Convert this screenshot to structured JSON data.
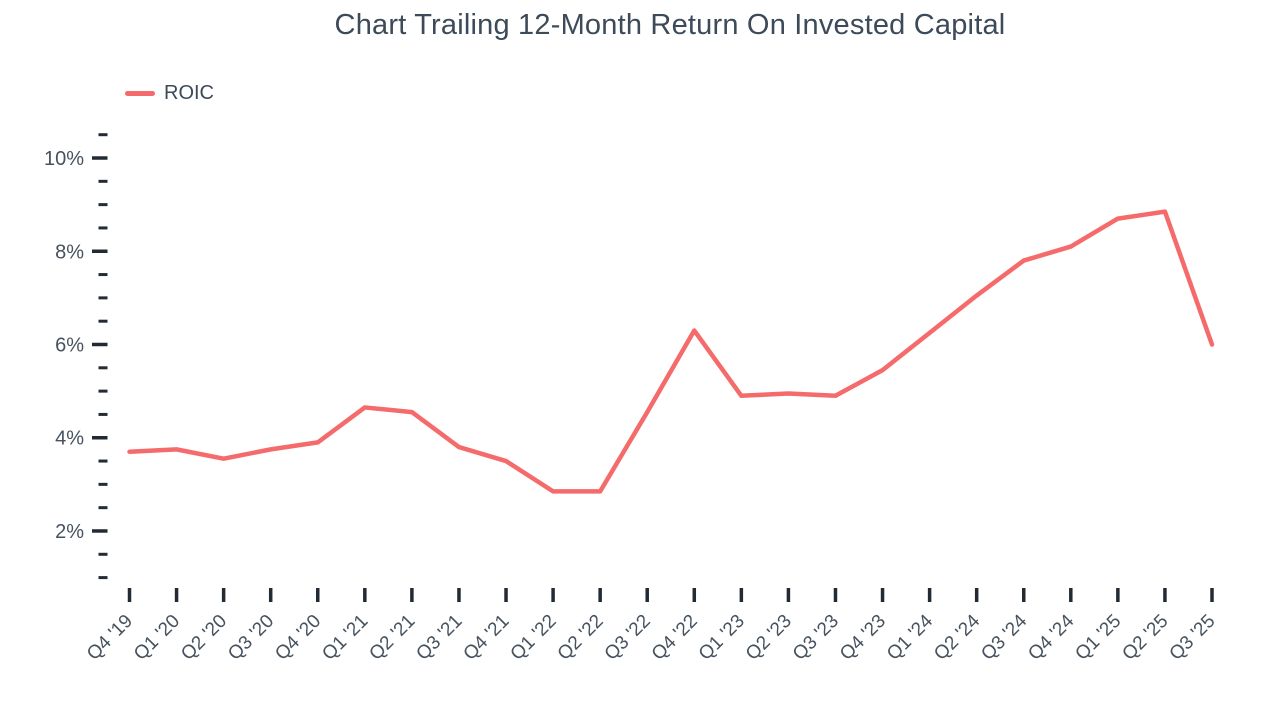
{
  "title": "Chart Trailing 12-Month Return On Invested Capital",
  "legend": {
    "label": "ROIC"
  },
  "colors": {
    "line": "#F56B6B",
    "text": "#3C4A59",
    "axis_label": "#46525E",
    "tick": "#222A33",
    "background": "#FFFFFF"
  },
  "chart_data": {
    "type": "line",
    "title": "Chart Trailing 12-Month Return On Invested Capital",
    "categories": [
      "Q4 '19",
      "Q1 '20",
      "Q2 '20",
      "Q3 '20",
      "Q4 '20",
      "Q1 '21",
      "Q2 '21",
      "Q3 '21",
      "Q4 '21",
      "Q1 '22",
      "Q2 '22",
      "Q3 '22",
      "Q4 '22",
      "Q1 '23",
      "Q2 '23",
      "Q3 '23",
      "Q4 '23",
      "Q1 '24",
      "Q2 '24",
      "Q3 '24",
      "Q4 '24",
      "Q1 '25",
      "Q2 '25",
      "Q3 '25"
    ],
    "series": [
      {
        "name": "ROIC",
        "values": [
          3.7,
          3.75,
          3.55,
          3.75,
          3.9,
          4.65,
          4.55,
          3.8,
          3.5,
          2.85,
          2.85,
          4.55,
          6.3,
          4.9,
          4.95,
          4.9,
          5.45,
          6.25,
          7.05,
          7.8,
          8.1,
          8.7,
          8.85,
          6.0
        ]
      }
    ],
    "xlabel": "",
    "ylabel": "",
    "y_axis": {
      "min": 1,
      "max": 10.5,
      "major_ticks": [
        2,
        4,
        6,
        8,
        10
      ],
      "minor_tick_step": 0.5,
      "tick_format": "percent"
    },
    "legend_position": "top-left",
    "grid": false,
    "x_label_rotation_deg": -45
  }
}
